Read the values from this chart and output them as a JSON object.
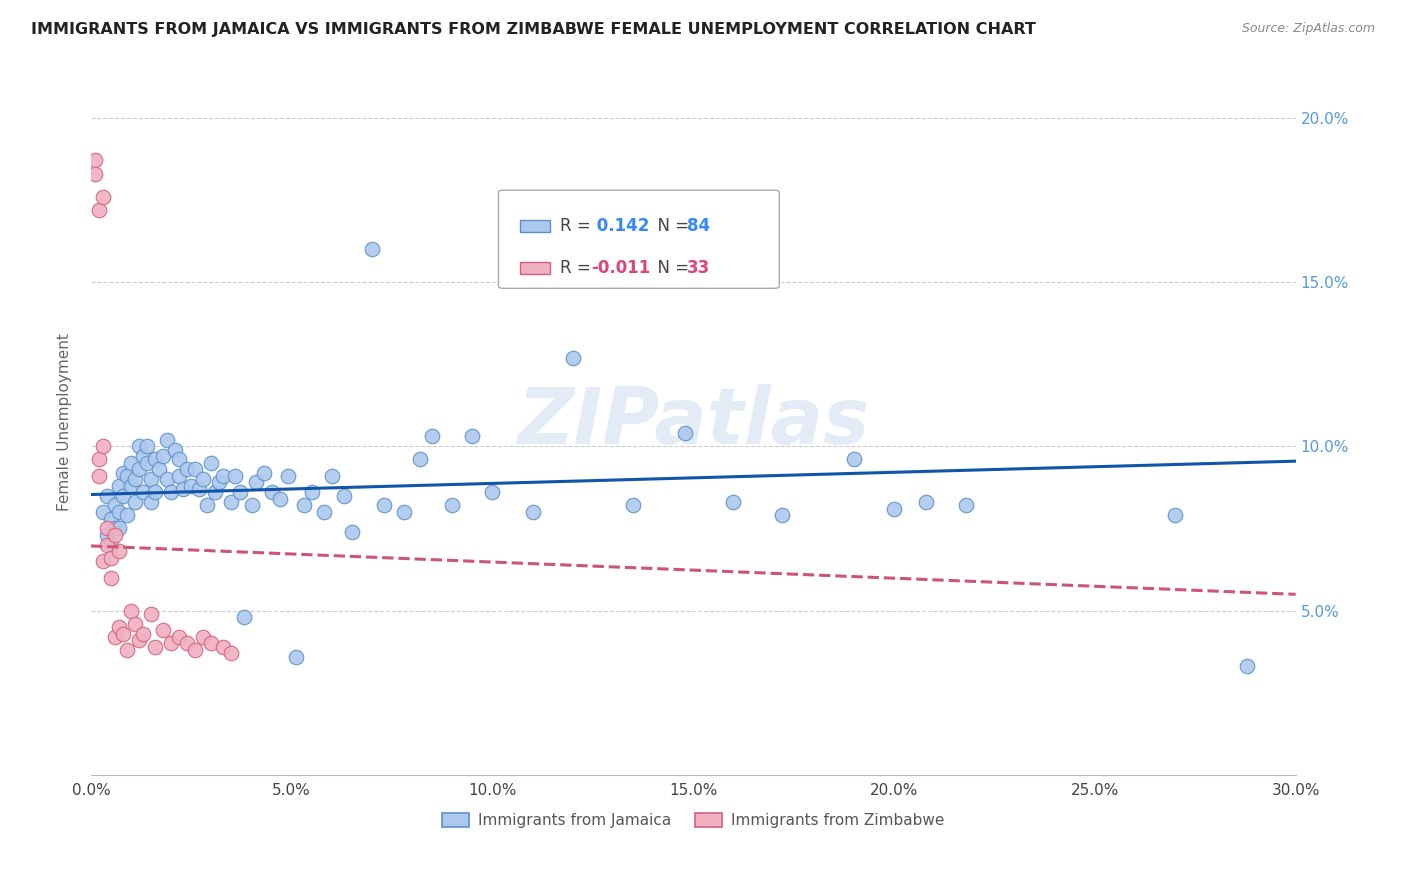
{
  "title": "IMMIGRANTS FROM JAMAICA VS IMMIGRANTS FROM ZIMBABWE FEMALE UNEMPLOYMENT CORRELATION CHART",
  "source": "Source: ZipAtlas.com",
  "ylabel": "Female Unemployment",
  "xlim": [
    0.0,
    0.3
  ],
  "ylim": [
    0.0,
    0.215
  ],
  "xticks": [
    0.0,
    0.05,
    0.1,
    0.15,
    0.2,
    0.25,
    0.3
  ],
  "yticks": [
    0.05,
    0.1,
    0.15,
    0.2
  ],
  "ytick_labels": [
    "5.0%",
    "10.0%",
    "15.0%",
    "20.0%"
  ],
  "xtick_labels": [
    "0.0%",
    "5.0%",
    "10.0%",
    "15.0%",
    "20.0%",
    "25.0%",
    "30.0%"
  ],
  "jamaica_color": "#adc8ed",
  "jamaica_edge_color": "#5b8fc9",
  "zimbabwe_color": "#f0b0c0",
  "zimbabwe_edge_color": "#d06080",
  "jamaica_R": 0.142,
  "jamaica_N": 84,
  "zimbabwe_R": -0.011,
  "zimbabwe_N": 33,
  "jamaica_line_color": "#1155aa",
  "zimbabwe_line_color": "#cc5577",
  "watermark": "ZIPatlas",
  "jamaica_x": [
    0.003,
    0.004,
    0.004,
    0.005,
    0.005,
    0.006,
    0.006,
    0.007,
    0.007,
    0.007,
    0.008,
    0.008,
    0.009,
    0.009,
    0.01,
    0.01,
    0.011,
    0.011,
    0.012,
    0.012,
    0.013,
    0.013,
    0.014,
    0.014,
    0.015,
    0.015,
    0.016,
    0.016,
    0.017,
    0.018,
    0.019,
    0.019,
    0.02,
    0.021,
    0.022,
    0.022,
    0.023,
    0.024,
    0.025,
    0.026,
    0.027,
    0.028,
    0.029,
    0.03,
    0.031,
    0.032,
    0.033,
    0.035,
    0.036,
    0.037,
    0.038,
    0.04,
    0.041,
    0.043,
    0.045,
    0.047,
    0.049,
    0.051,
    0.053,
    0.055,
    0.058,
    0.06,
    0.063,
    0.065,
    0.07,
    0.073,
    0.078,
    0.082,
    0.085,
    0.09,
    0.095,
    0.1,
    0.11,
    0.12,
    0.135,
    0.148,
    0.16,
    0.172,
    0.19,
    0.2,
    0.208,
    0.218,
    0.27,
    0.288
  ],
  "jamaica_y": [
    0.08,
    0.073,
    0.085,
    0.07,
    0.078,
    0.075,
    0.082,
    0.088,
    0.075,
    0.08,
    0.092,
    0.085,
    0.079,
    0.091,
    0.095,
    0.088,
    0.083,
    0.09,
    0.1,
    0.093,
    0.097,
    0.086,
    0.095,
    0.1,
    0.083,
    0.09,
    0.096,
    0.086,
    0.093,
    0.097,
    0.102,
    0.09,
    0.086,
    0.099,
    0.091,
    0.096,
    0.087,
    0.093,
    0.088,
    0.093,
    0.087,
    0.09,
    0.082,
    0.095,
    0.086,
    0.089,
    0.091,
    0.083,
    0.091,
    0.086,
    0.048,
    0.082,
    0.089,
    0.092,
    0.086,
    0.084,
    0.091,
    0.036,
    0.082,
    0.086,
    0.08,
    0.091,
    0.085,
    0.074,
    0.16,
    0.082,
    0.08,
    0.096,
    0.103,
    0.082,
    0.103,
    0.086,
    0.08,
    0.127,
    0.082,
    0.104,
    0.083,
    0.079,
    0.096,
    0.081,
    0.083,
    0.082,
    0.079,
    0.033
  ],
  "zimbabwe_x": [
    0.001,
    0.001,
    0.002,
    0.002,
    0.002,
    0.003,
    0.003,
    0.003,
    0.004,
    0.004,
    0.005,
    0.005,
    0.006,
    0.006,
    0.007,
    0.007,
    0.008,
    0.009,
    0.01,
    0.011,
    0.012,
    0.013,
    0.015,
    0.016,
    0.018,
    0.02,
    0.022,
    0.024,
    0.026,
    0.028,
    0.03,
    0.033,
    0.035
  ],
  "zimbabwe_y": [
    0.187,
    0.183,
    0.096,
    0.091,
    0.172,
    0.176,
    0.1,
    0.065,
    0.07,
    0.075,
    0.06,
    0.066,
    0.073,
    0.042,
    0.068,
    0.045,
    0.043,
    0.038,
    0.05,
    0.046,
    0.041,
    0.043,
    0.049,
    0.039,
    0.044,
    0.04,
    0.042,
    0.04,
    0.038,
    0.042,
    0.04,
    0.039,
    0.037
  ]
}
